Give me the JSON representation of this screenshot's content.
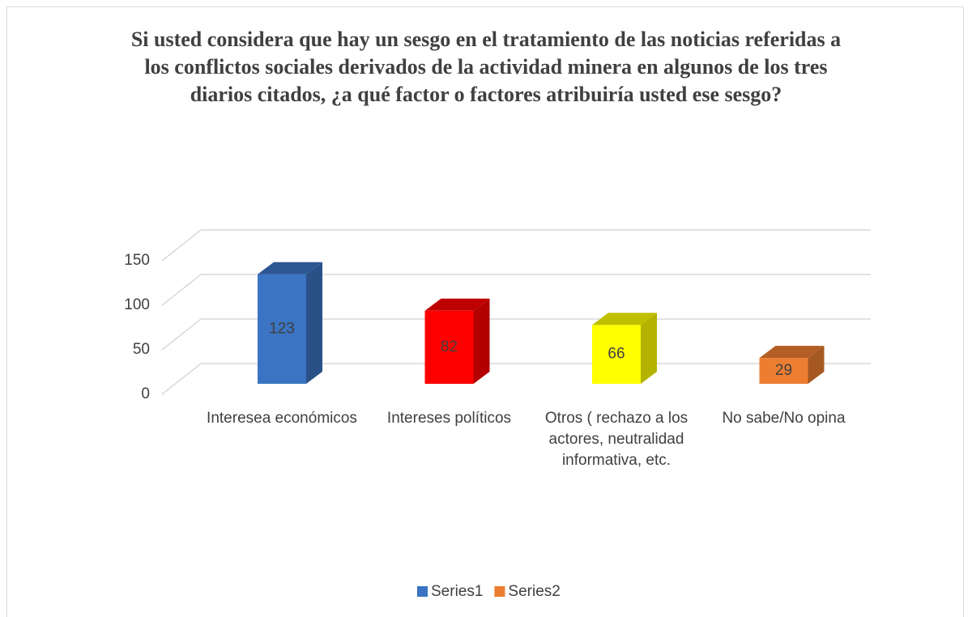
{
  "chart_data": {
    "type": "bar3d",
    "title": "Si usted considera que hay un sesgo en el tratamiento de las noticias referidas a los conflictos sociales derivados de la actividad minera en algunos de los tres diarios citados, ¿a qué factor o factores atribuiría usted ese sesgo?",
    "categories": [
      "Interesea económicos",
      "Intereses políticos",
      "Otros ( rechazo a los actores, neutralidad informativa, etc.",
      "No sabe/No opina"
    ],
    "values": [
      123,
      82,
      66,
      29
    ],
    "colors": [
      "#3a74c2",
      "#ff0000",
      "#ffff00",
      "#ed7d31"
    ],
    "legend": [
      {
        "name": "Series1",
        "color": "#3a74c2"
      },
      {
        "name": "Series2",
        "color": "#ed7d31"
      }
    ],
    "ylim": [
      0,
      150
    ],
    "yticks": [
      0,
      50,
      100,
      150
    ],
    "grid": true
  }
}
